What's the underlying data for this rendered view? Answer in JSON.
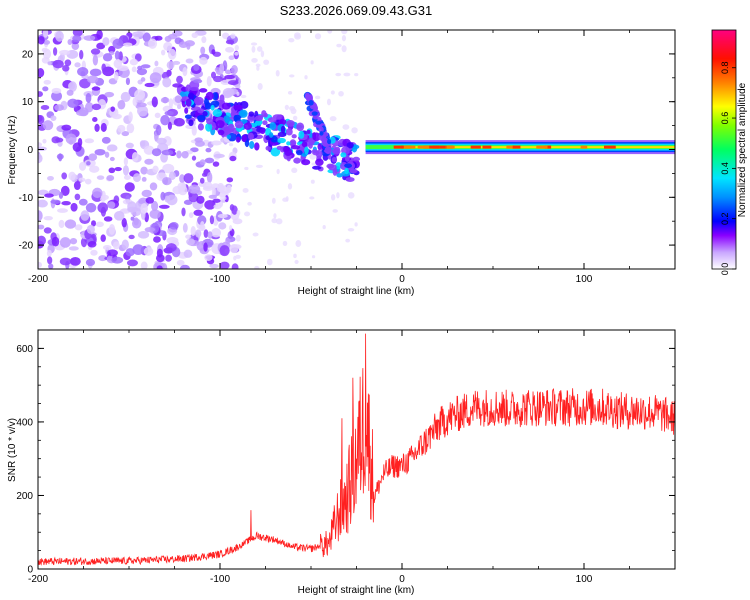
{
  "chart_data": [
    {
      "type": "heatmap",
      "title": "S233.2026.069.09.43.G31",
      "xlabel": "Height of straight line (km)",
      "ylabel": "Frequency (Hz)",
      "xlim": [
        -200,
        150
      ],
      "ylim": [
        -25,
        25
      ],
      "xticks": [
        -200,
        -100,
        0,
        100
      ],
      "xtick_labels": [
        "-200",
        "-100",
        "0",
        "100"
      ],
      "yticks": [
        -20,
        -10,
        0,
        10,
        20
      ],
      "ytick_labels": [
        "-20",
        "-10",
        "0",
        "10",
        "20"
      ],
      "colorbar": {
        "label": "Normalized spectral amplitude",
        "range": [
          0.0,
          0.95
        ],
        "ticks": [
          0.0,
          0.2,
          0.4,
          0.6,
          0.8
        ],
        "tick_labels": [
          "0.0",
          "0.2",
          "0.4",
          "0.6",
          "0.8"
        ],
        "colormap": [
          "#ffffff",
          "#8a00ff",
          "#0000ff",
          "#00e5ff",
          "#00ff40",
          "#ffff00",
          "#ff8000",
          "#ff0000",
          "#ff0080"
        ]
      },
      "description_features": {
        "noise_region_x": [
          -200,
          -100
        ],
        "descending_band": {
          "x": [
            -120,
            -25
          ],
          "f_start": 10,
          "f_end": -3
        },
        "steady_tone": {
          "x": [
            -20,
            150
          ],
          "frequency": 0.5
        }
      },
      "grid": false
    },
    {
      "type": "line",
      "xlabel": "Height of straight line (km)",
      "ylabel": "SNR (10 * v/v)",
      "xlim": [
        -200,
        150
      ],
      "ylim": [
        0,
        650
      ],
      "xticks": [
        -200,
        -100,
        0,
        100
      ],
      "xtick_labels": [
        "-200",
        "-100",
        "0",
        "100"
      ],
      "yticks": [
        0,
        200,
        400,
        600
      ],
      "ytick_labels": [
        "0",
        "200",
        "400",
        "600"
      ],
      "series": [
        {
          "name": "SNR",
          "color": "#ff2020",
          "envelope_x": [
            -200,
            -150,
            -120,
            -100,
            -90,
            -80,
            -70,
            -60,
            -50,
            -40,
            -35,
            -30,
            -25,
            -20,
            -15,
            -10,
            -5,
            0,
            5,
            10,
            15,
            20,
            25,
            30,
            40,
            50,
            60,
            70,
            80,
            90,
            100,
            110,
            120,
            130,
            140,
            150
          ],
          "envelope_y": [
            20,
            22,
            28,
            40,
            60,
            90,
            80,
            60,
            55,
            70,
            150,
            200,
            300,
            420,
            200,
            260,
            280,
            280,
            300,
            330,
            360,
            390,
            410,
            420,
            440,
            440,
            435,
            440,
            440,
            440,
            440,
            440,
            430,
            430,
            425,
            410
          ],
          "spikes": [
            {
              "x": -20,
              "y": 640
            },
            {
              "x": -27,
              "y": 520
            },
            {
              "x": -33,
              "y": 410
            },
            {
              "x": -83,
              "y": 160
            }
          ]
        }
      ],
      "grid": false
    }
  ]
}
